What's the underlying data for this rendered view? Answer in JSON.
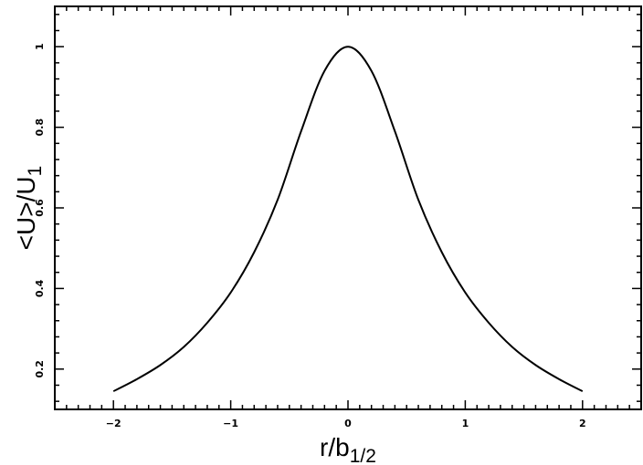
{
  "chart_data": {
    "type": "line",
    "title": "",
    "xlabel": {
      "base": "r/b",
      "subscript": "1/2"
    },
    "ylabel": {
      "base": "<U>/U",
      "subscript": "1"
    },
    "xlim": [
      -2.5,
      2.5
    ],
    "ylim": [
      0.1,
      1.1
    ],
    "xticks": [
      -2,
      -1,
      0,
      1,
      2
    ],
    "xtick_labels": [
      "−2",
      "−1",
      "0",
      "1",
      "2"
    ],
    "yticks": [
      0.2,
      0.4,
      0.6,
      0.8,
      1.0
    ],
    "ytick_labels": [
      "0.2",
      "0.4",
      "0.6",
      "0.8",
      "1"
    ],
    "grid": false,
    "series": [
      {
        "color": "#000000",
        "x": [
          -2.0,
          -1.8,
          -1.6,
          -1.4,
          -1.2,
          -1.0,
          -0.8,
          -0.6,
          -0.4,
          -0.2,
          0.0,
          0.2,
          0.4,
          0.6,
          0.8,
          1.0,
          1.2,
          1.4,
          1.6,
          1.8,
          2.0
        ],
        "y": [
          0.145,
          0.175,
          0.21,
          0.255,
          0.315,
          0.39,
          0.49,
          0.62,
          0.79,
          0.94,
          1.0,
          0.94,
          0.79,
          0.62,
          0.49,
          0.39,
          0.315,
          0.255,
          0.21,
          0.175,
          0.145
        ]
      }
    ]
  }
}
